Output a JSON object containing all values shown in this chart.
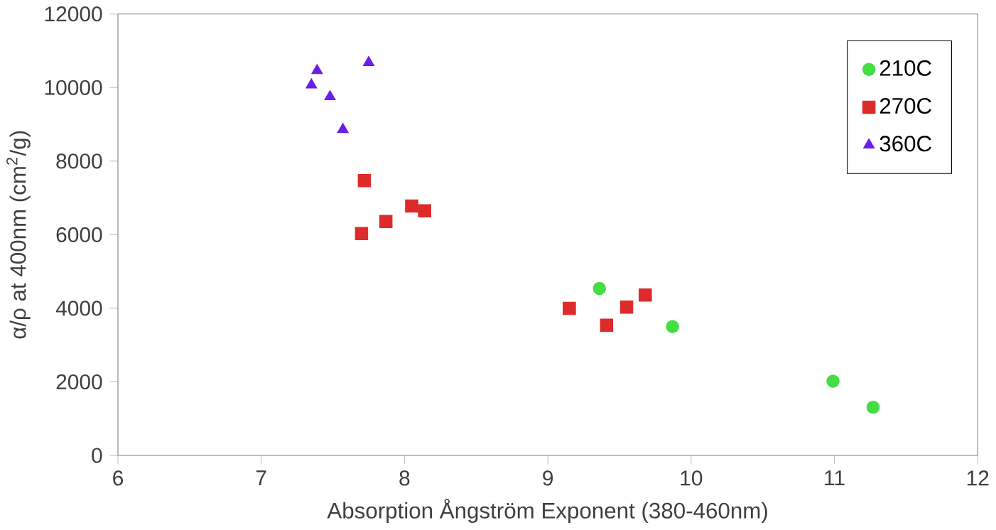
{
  "chart_data": {
    "type": "scatter",
    "xlabel": "Absorption Ångström Exponent (380-460nm)",
    "ylabel": "α/ρ at 400nm (cm$^{2}$/g)",
    "xlim": [
      6,
      12
    ],
    "xticks": [
      6,
      7,
      8,
      9,
      10,
      11,
      12
    ],
    "ylim": [
      0,
      12000
    ],
    "yticks": [
      0,
      2000,
      4000,
      6000,
      8000,
      10000,
      12000
    ],
    "legend": "top right",
    "grid": false,
    "series": [
      {
        "name": "210C",
        "color": "#44dd44",
        "marker": "circle",
        "x": [
          9.36,
          9.87,
          10.99,
          11.27
        ],
        "values": [
          4540,
          3500,
          2020,
          1310
        ]
      },
      {
        "name": "270C",
        "color": "#dd2a2a",
        "marker": "square",
        "x": [
          7.72,
          7.7,
          7.87,
          8.05,
          8.14,
          9.15,
          9.41,
          9.55,
          9.68
        ],
        "values": [
          7470,
          6030,
          6360,
          6780,
          6650,
          4000,
          3540,
          4030,
          4360
        ]
      },
      {
        "name": "360C",
        "color": "#6a1fe8",
        "marker": "triangle",
        "x": [
          7.39,
          7.35,
          7.48,
          7.57,
          7.75
        ],
        "values": [
          10460,
          10070,
          9750,
          8860,
          10680
        ]
      }
    ]
  }
}
